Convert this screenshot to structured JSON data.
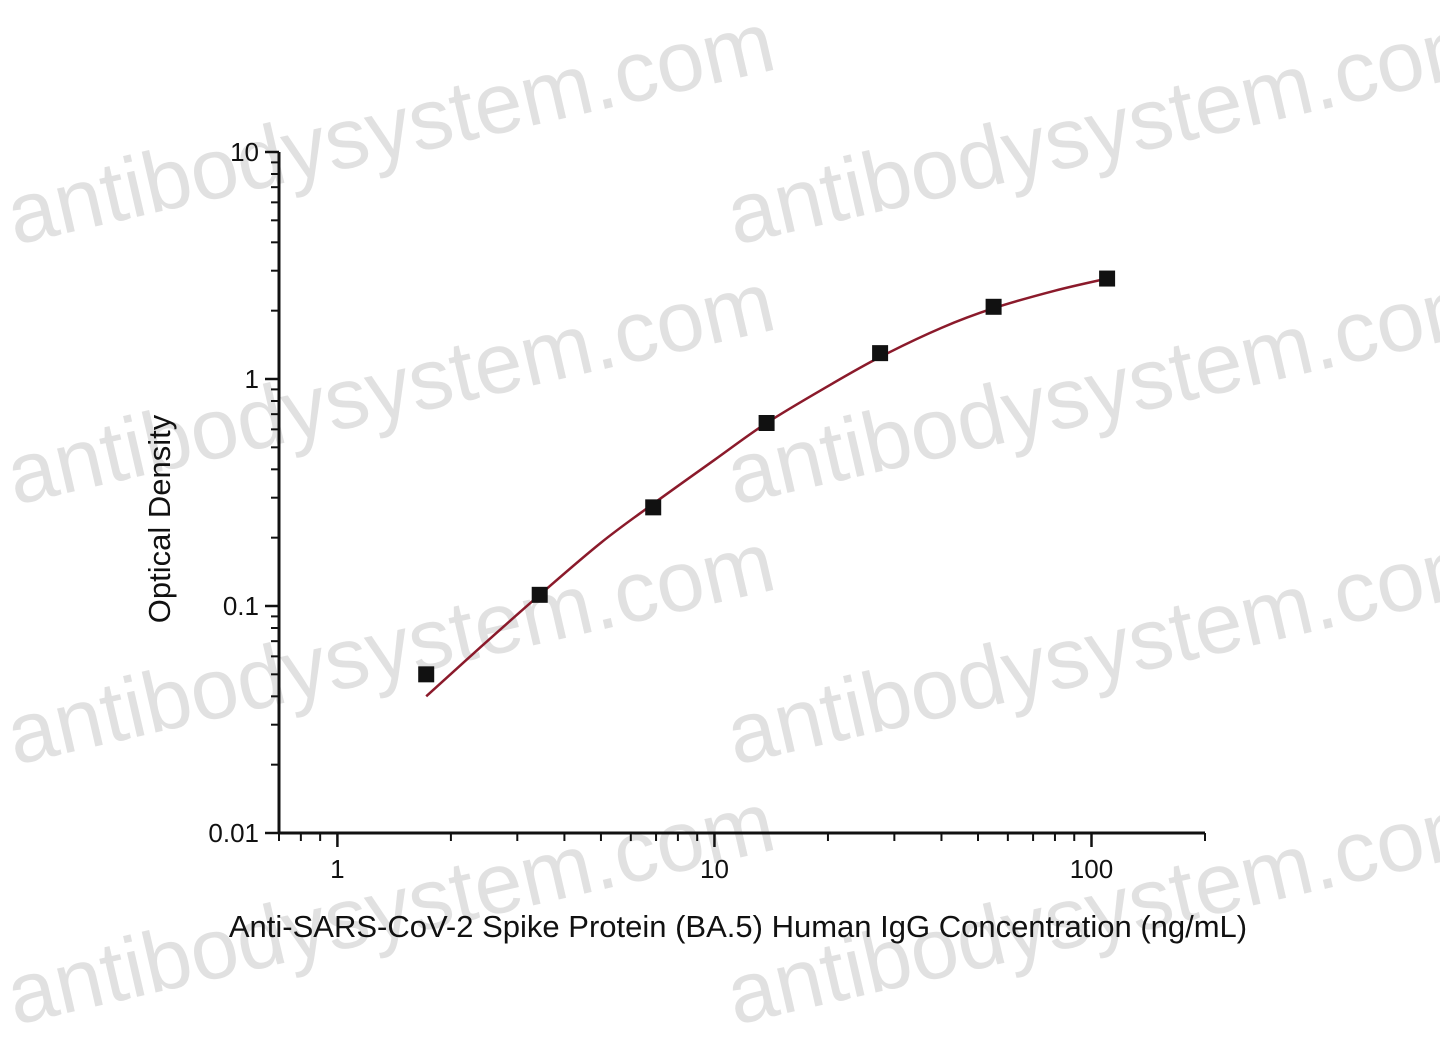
{
  "watermark_text": "antibodysystem.com",
  "chart_data": {
    "type": "scatter",
    "xlabel": "Anti-SARS-CoV-2 Spike Protein (BA.5) Human IgG Concentration (ng/mL)",
    "ylabel": "Optical Density",
    "x_scale": "log",
    "y_scale": "log",
    "xlim": [
      0.7,
      200
    ],
    "ylim": [
      0.01,
      10
    ],
    "x_ticks": [
      {
        "value": 1,
        "label": "1"
      },
      {
        "value": 10,
        "label": "10"
      },
      {
        "value": 100,
        "label": "100"
      }
    ],
    "y_ticks": [
      {
        "value": 0.01,
        "label": "0.01"
      },
      {
        "value": 0.1,
        "label": "0.1"
      },
      {
        "value": 1,
        "label": "1"
      },
      {
        "value": 10,
        "label": "10"
      }
    ],
    "grid": false,
    "series": [
      {
        "marker": "square",
        "color": "#111111",
        "x": [
          1.72,
          3.44,
          6.88,
          13.75,
          27.5,
          55,
          110
        ],
        "y": [
          0.05,
          0.112,
          0.272,
          0.64,
          1.3,
          2.08,
          2.77
        ]
      }
    ],
    "fit_curve": {
      "color": "#8b1a2b",
      "x": [
        1.72,
        2.4,
        3.44,
        5,
        6.88,
        10,
        13.75,
        20,
        27.5,
        40,
        55,
        80,
        110
      ],
      "y": [
        0.04,
        0.066,
        0.112,
        0.19,
        0.282,
        0.44,
        0.64,
        0.93,
        1.25,
        1.68,
        2.05,
        2.45,
        2.77
      ]
    },
    "colors": {
      "axis": "#111111",
      "marker": "#111111",
      "curve": "#8b1a2b",
      "watermark": "#c9c9c9"
    }
  }
}
